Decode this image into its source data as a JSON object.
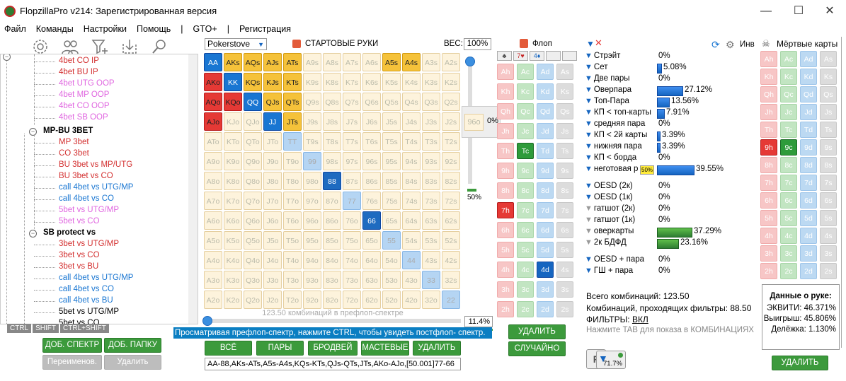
{
  "window": {
    "title": "FlopzillaPro v214: Зарегистрированная версия",
    "min": "—",
    "max": "☐",
    "close": "✕"
  },
  "menu": [
    "Файл",
    "Команды",
    "Настройки",
    "Помощь",
    "|",
    "GTO+",
    "|",
    "Регистрация"
  ],
  "toolbar_icons": [
    "gear-icon",
    "users-icon",
    "filter-add-icon",
    "import-icon",
    "search-icon"
  ],
  "tree": {
    "items": [
      {
        "label": "4bet CO IP",
        "color": "#d32f2f"
      },
      {
        "label": "4bet BU IP",
        "color": "#d32f2f"
      },
      {
        "label": "4bet UTG OOP",
        "color": "#e066e0"
      },
      {
        "label": "4bet MP OOP",
        "color": "#e066e0"
      },
      {
        "label": "4bet CO OOP",
        "color": "#e066e0"
      },
      {
        "label": "4bet SB OOP",
        "color": "#e066e0"
      }
    ],
    "group1": "MP-BU 3BET",
    "group1_items": [
      {
        "label": "MP 3bet",
        "color": "#d32f2f"
      },
      {
        "label": "CO 3bet",
        "color": "#d32f2f"
      },
      {
        "label": "BU 3bet vs MP/UTG",
        "color": "#d32f2f"
      },
      {
        "label": "BU 3bet vs CO",
        "color": "#d32f2f"
      },
      {
        "label": "call 4bet vs UTG/MP",
        "color": "#1976d2"
      },
      {
        "label": "call 4bet vs CO",
        "color": "#1976d2"
      },
      {
        "label": "5bet vs UTG/MP",
        "color": "#e066e0"
      },
      {
        "label": "5bet vs CO",
        "color": "#e066e0"
      }
    ],
    "group2": "SB protect vs",
    "group2_items": [
      {
        "label": "3bet vs UTG/MP",
        "color": "#d32f2f"
      },
      {
        "label": "3bet vs CO",
        "color": "#d32f2f"
      },
      {
        "label": "3bet vs BU",
        "color": "#d32f2f"
      },
      {
        "label": "call 4bet vs UTG/MP",
        "color": "#1976d2"
      },
      {
        "label": "call 4bet vs CO",
        "color": "#1976d2"
      },
      {
        "label": "call 4bet vs BU",
        "color": "#1976d2"
      },
      {
        "label": "5bet vs UTG/MP",
        "color": "#000000"
      },
      {
        "label": "5bet vs CO",
        "color": "#000000"
      }
    ],
    "kb": [
      "CTRL",
      "SHIFT",
      "CTRL+SHIFT"
    ]
  },
  "left_buttons": {
    "add_range": "ДОБ. СПЕКТР",
    "add_folder": "ДОБ. ПАПКУ",
    "rename": "Переименов.",
    "delete": "Удалить"
  },
  "hands": {
    "dropdown": "Pokerstove",
    "header": "СТАРТОВЫЕ РУКИ",
    "weight_label": "ВЕС:",
    "weight": "100%",
    "ranks": [
      "A",
      "K",
      "Q",
      "J",
      "T",
      "9",
      "8",
      "7",
      "6",
      "5",
      "4",
      "3",
      "2"
    ],
    "selected": [
      "AA",
      "AKs",
      "AQs",
      "AJs",
      "ATs",
      "A5s",
      "A4s",
      "AKo",
      "KK",
      "KQs",
      "KJs",
      "KTs",
      "AQo",
      "KQo",
      "QQ",
      "QJs",
      "QTs",
      "AJo",
      "JJ",
      "JTs"
    ],
    "partial": [
      "TT",
      "99",
      "88",
      "77",
      "66",
      "55",
      "44",
      "33",
      "22"
    ],
    "dark": [
      "88",
      "66"
    ],
    "popup_hand": "96o",
    "popup_pct": "0%",
    "slider_pct": "50%",
    "combos_text": "123.50 комбинаций в префлоп-спектре",
    "range_pct": "11.4%",
    "tooltip": "Просматривая префлоп-спектр, нажмите CTRL, чтобы увидеть постфлоп- спектр.",
    "btn_all": "ВСЁ",
    "btn_pairs": "ПАРЫ",
    "btn_broadway": "БРОДВЕЙ",
    "btn_suited": "МАСТЕВЫЕ",
    "btn_delete": "УДАЛИТЬ",
    "range_string": "AA-88,AKs-ATs,A5s-A4s,KQs-KTs,QJs-QTs,JTs,AKo-AJo,[50.001]77-66"
  },
  "flop": {
    "header": "Флоп",
    "board": [
      "♣",
      "7♥",
      "4♦",
      "",
      ""
    ],
    "ranks": [
      "A",
      "K",
      "Q",
      "J",
      "T",
      "9",
      "8",
      "7",
      "6",
      "5",
      "4",
      "3",
      "2"
    ],
    "selected": [
      "Tc",
      "7h",
      "4d"
    ],
    "btn_delete": "УДАЛИТЬ",
    "btn_random": "СЛУЧАЙНО"
  },
  "stats": {
    "rows": [
      {
        "label": "Стрэйт",
        "pct": "0%",
        "val": 0
      },
      {
        "label": "Сет",
        "pct": "5.08%",
        "val": 5.08
      },
      {
        "label": "Две пары",
        "pct": "0%",
        "val": 0
      },
      {
        "label": "Оверпара",
        "pct": "27.12%",
        "val": 27.12
      },
      {
        "label": "Топ-Пара",
        "pct": "13.56%",
        "val": 13.56
      },
      {
        "label": "КП < топ-карты",
        "pct": "7.91%",
        "val": 7.91
      },
      {
        "label": "средняя пара",
        "pct": "0%",
        "val": 0
      },
      {
        "label": "КП < 2й карты",
        "pct": "3.39%",
        "val": 3.39
      },
      {
        "label": "нижняя пара",
        "pct": "3.39%",
        "val": 3.39
      },
      {
        "label": "КП < борда",
        "pct": "0%",
        "val": 0
      },
      {
        "label": "неготовая р",
        "pct": "39.55%",
        "val": 39.55
      }
    ],
    "draws": [
      {
        "label": "OESD (2к)",
        "pct": "0%",
        "val": 0,
        "g": false
      },
      {
        "label": "OESD (1к)",
        "pct": "0%",
        "val": 0,
        "g": false
      },
      {
        "label": "гатшот (2к)",
        "pct": "0%",
        "val": 0,
        "g": true
      },
      {
        "label": "гатшот (1к)",
        "pct": "0%",
        "val": 0,
        "g": true
      },
      {
        "label": "оверкарты",
        "pct": "37.29%",
        "val": 37.29,
        "g": true
      },
      {
        "label": "2к БДФД",
        "pct": "23.16%",
        "val": 23.16,
        "g": true
      }
    ],
    "combo": [
      {
        "label": "OESD + пара",
        "pct": "0%"
      },
      {
        "label": "ГШ + пара",
        "pct": "0%"
      }
    ],
    "tag50": "50%",
    "total": "Всего комбинаций: 123.50",
    "passing": "Комбинаций, проходящих фильтры: 88.50",
    "filters_label": "ФИЛЬТРЫ:",
    "filters_val": "ВКЛ",
    "tab_hint": "Нажмите TAB для показа в КОМБИНАЦИЯХ",
    "filter_badge": "71.7%",
    "inv": "Инв"
  },
  "dead": {
    "header": "Мёртвые карты",
    "selected": [
      "9h",
      "9c"
    ],
    "info_title": "Данные о руке:",
    "equity": "ЭКВИТИ: 46.371%",
    "win": "Выигрыш: 45.806%",
    "tie": "Делёжка: 1.130%",
    "btn_delete": "УДАЛИТЬ"
  }
}
